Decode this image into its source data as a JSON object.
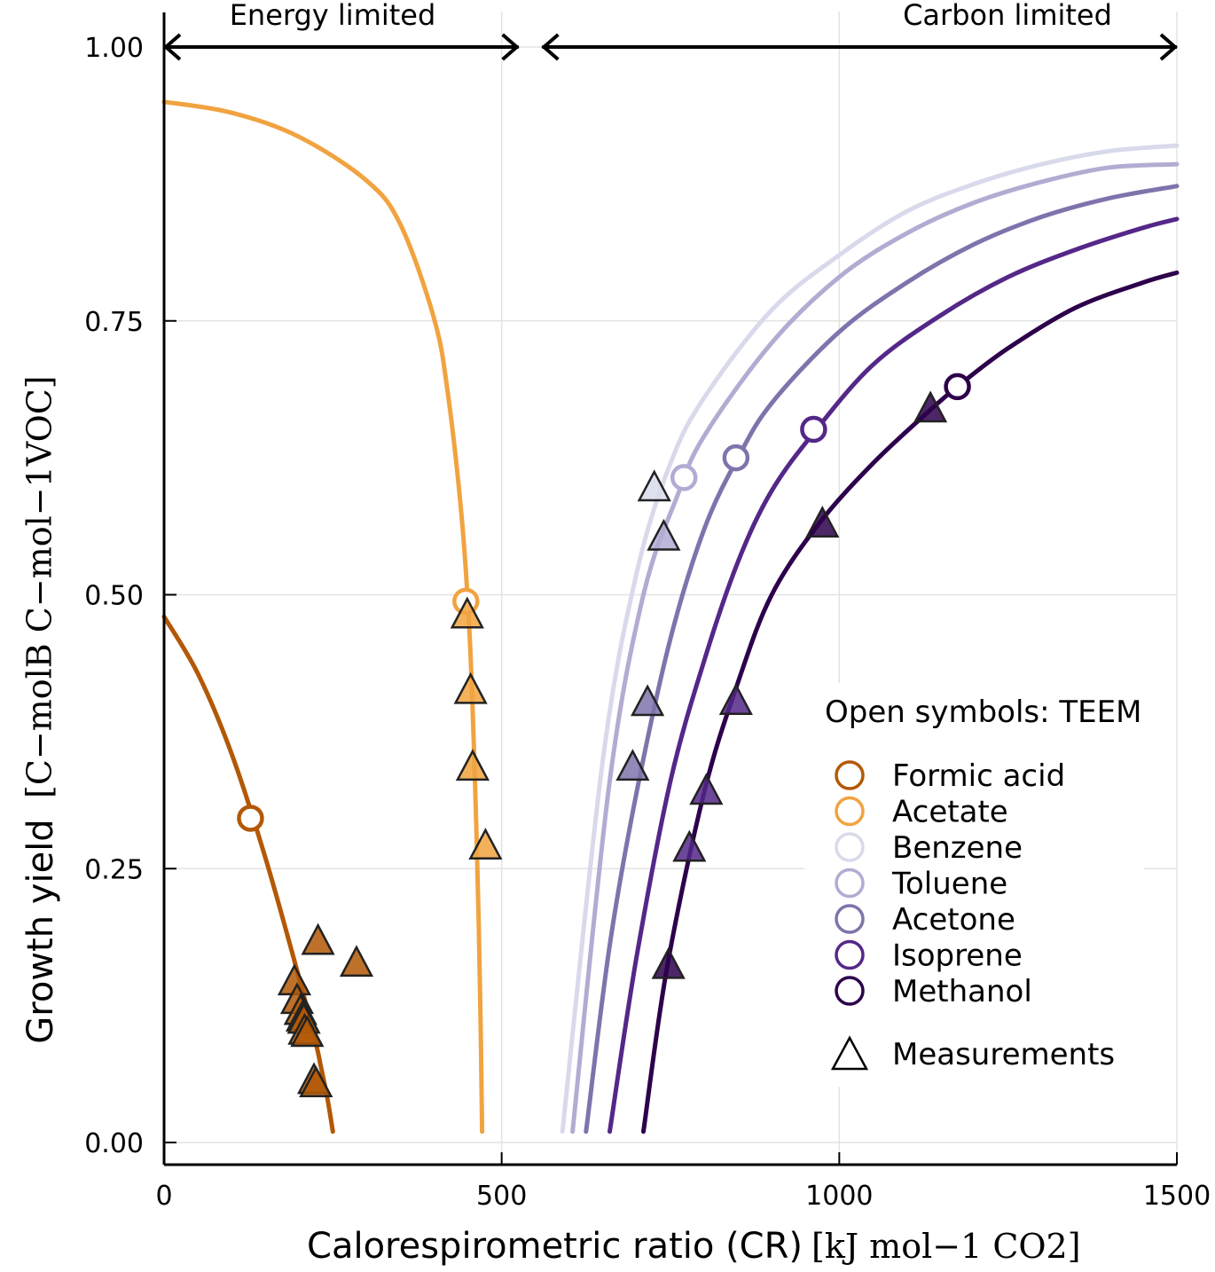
{
  "chart_data": {
    "type": "line",
    "xlabel": "Calorespirometric ratio (CR)",
    "xunit": "[kJ mol−1 CO2]",
    "ylabel": "Growth yield",
    "yunit": "[C−molB C−mol−1VOC]",
    "xlim": [
      0,
      1500
    ],
    "ylim": [
      0,
      1.0
    ],
    "xticks": [
      "0",
      "500",
      "1000",
      "1500"
    ],
    "yticks": [
      "0.00",
      "0.25",
      "0.50",
      "0.75",
      "1.00"
    ],
    "grid": true,
    "regions": [
      {
        "label": "Energy limited",
        "x_from": 0,
        "x_to": 525
      },
      {
        "label": "Carbon limited",
        "x_from": 560,
        "x_to": 1500
      }
    ],
    "legend": {
      "title": "Open symbols: TEEM",
      "measurements_label": "Measurements",
      "placement": "right"
    },
    "series": [
      {
        "name": "Formic acid",
        "color": "#b35806",
        "kind": "energy",
        "curve": [
          [
            0,
            0.48
          ],
          [
            50,
            0.428
          ],
          [
            100,
            0.355
          ],
          [
            150,
            0.26
          ],
          [
            200,
            0.15
          ],
          [
            225,
            0.09
          ],
          [
            232,
            0.07
          ],
          [
            242,
            0.04
          ],
          [
            250,
            0.01
          ]
        ],
        "teem": [
          128,
          0.296
        ],
        "measurements": [
          [
            193,
            0.145
          ],
          [
            197,
            0.128
          ],
          [
            202,
            0.118
          ],
          [
            205,
            0.112
          ],
          [
            207,
            0.11
          ],
          [
            208,
            0.1
          ],
          [
            212,
            0.098
          ],
          [
            222,
            0.055
          ],
          [
            225,
            0.052
          ],
          [
            228,
            0.182
          ],
          [
            285,
            0.162
          ]
        ]
      },
      {
        "name": "Acetate",
        "color": "#f1a340",
        "kind": "energy",
        "curve": [
          [
            0,
            0.95
          ],
          [
            100,
            0.94
          ],
          [
            200,
            0.918
          ],
          [
            300,
            0.878
          ],
          [
            350,
            0.838
          ],
          [
            400,
            0.752
          ],
          [
            420,
            0.685
          ],
          [
            440,
            0.576
          ],
          [
            452,
            0.47
          ],
          [
            460,
            0.34
          ],
          [
            466,
            0.2
          ],
          [
            469,
            0.1
          ],
          [
            471,
            0.01
          ]
        ],
        "teem": [
          447,
          0.494
        ],
        "measurements": [
          [
            449,
            0.48
          ],
          [
            454,
            0.411
          ],
          [
            457,
            0.341
          ],
          [
            476,
            0.269
          ]
        ]
      },
      {
        "name": "Benzene",
        "color": "#d8daeb",
        "kind": "carbon",
        "curve": [
          [
            590,
            0.01
          ],
          [
            650,
            0.35
          ],
          [
            700,
            0.52
          ],
          [
            750,
            0.62
          ],
          [
            800,
            0.68
          ],
          [
            900,
            0.76
          ],
          [
            1000,
            0.81
          ],
          [
            1100,
            0.85
          ],
          [
            1200,
            0.875
          ],
          [
            1300,
            0.893
          ],
          [
            1400,
            0.905
          ],
          [
            1500,
            0.91
          ]
        ],
        "teem": null,
        "measurements": [
          [
            726,
            0.596
          ]
        ]
      },
      {
        "name": "Toluene",
        "color": "#b2abd2",
        "kind": "carbon",
        "curve": [
          [
            605,
            0.01
          ],
          [
            660,
            0.33
          ],
          [
            710,
            0.5
          ],
          [
            760,
            0.59
          ],
          [
            800,
            0.645
          ],
          [
            900,
            0.73
          ],
          [
            1000,
            0.79
          ],
          [
            1100,
            0.83
          ],
          [
            1200,
            0.858
          ],
          [
            1300,
            0.877
          ],
          [
            1400,
            0.89
          ],
          [
            1500,
            0.893
          ]
        ],
        "teem": [
          770,
          0.607
        ],
        "measurements": [
          [
            740,
            0.551
          ]
        ]
      },
      {
        "name": "Acetone",
        "color": "#8073ac",
        "kind": "carbon",
        "curve": [
          [
            625,
            0.01
          ],
          [
            660,
            0.18
          ],
          [
            700,
            0.32
          ],
          [
            750,
            0.46
          ],
          [
            800,
            0.56
          ],
          [
            850,
            0.625
          ],
          [
            900,
            0.675
          ],
          [
            1000,
            0.74
          ],
          [
            1100,
            0.785
          ],
          [
            1200,
            0.82
          ],
          [
            1300,
            0.845
          ],
          [
            1400,
            0.862
          ],
          [
            1500,
            0.873
          ]
        ],
        "teem": [
          847,
          0.625
        ],
        "measurements": [
          [
            716,
            0.4
          ],
          [
            694,
            0.341
          ]
        ]
      },
      {
        "name": "Isoprene",
        "color": "#542788",
        "kind": "carbon",
        "curve": [
          [
            660,
            0.01
          ],
          [
            700,
            0.17
          ],
          [
            750,
            0.33
          ],
          [
            800,
            0.44
          ],
          [
            850,
            0.53
          ],
          [
            900,
            0.595
          ],
          [
            965,
            0.65
          ],
          [
            1050,
            0.71
          ],
          [
            1150,
            0.755
          ],
          [
            1250,
            0.79
          ],
          [
            1350,
            0.815
          ],
          [
            1450,
            0.835
          ],
          [
            1500,
            0.843
          ]
        ],
        "teem": [
          962,
          0.651
        ],
        "measurements": [
          [
            847,
            0.401
          ],
          [
            803,
            0.319
          ],
          [
            778,
            0.267
          ]
        ]
      },
      {
        "name": "Methanol",
        "color": "#2d004b",
        "kind": "carbon",
        "curve": [
          [
            710,
            0.01
          ],
          [
            745,
            0.16
          ],
          [
            800,
            0.32
          ],
          [
            850,
            0.42
          ],
          [
            900,
            0.5
          ],
          [
            970,
            0.565
          ],
          [
            1050,
            0.62
          ],
          [
            1130,
            0.666
          ],
          [
            1175,
            0.69
          ],
          [
            1250,
            0.725
          ],
          [
            1350,
            0.762
          ],
          [
            1450,
            0.785
          ],
          [
            1500,
            0.794
          ]
        ],
        "teem": [
          1175,
          0.69
        ],
        "measurements": [
          [
            1135,
            0.668
          ],
          [
            975,
            0.563
          ],
          [
            747,
            0.16
          ]
        ]
      }
    ]
  }
}
